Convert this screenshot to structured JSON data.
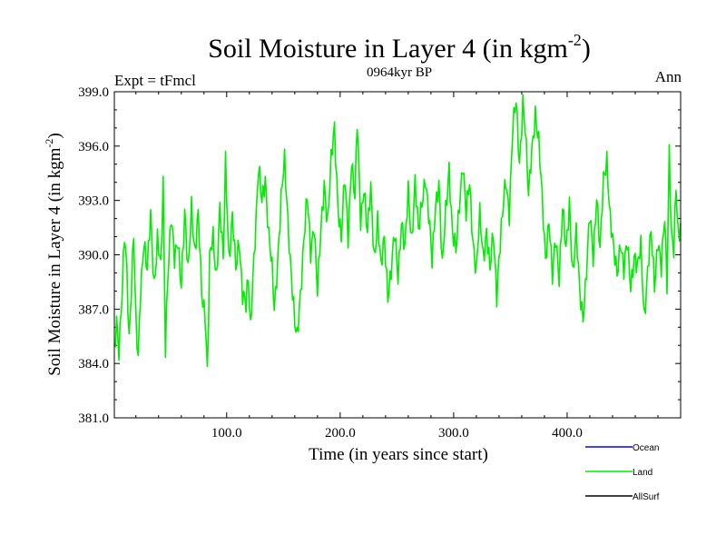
{
  "chart_data": {
    "type": "line",
    "title": "Soil Moisture in Layer 4 (in kgm",
    "title_sup": "-2",
    "title_close": ")",
    "subtitle": "0964kyr BP",
    "left_label": "Expt = tFmcl",
    "right_label": "Ann",
    "xlabel": "Time (in years since start)",
    "ylabel": "Soil Moisture in Layer 4 (in kgm",
    "ylabel_sup": "-2",
    "ylabel_close": ")",
    "xlim": [
      1,
      500
    ],
    "ylim": [
      381,
      399
    ],
    "xticks": [
      100,
      200,
      300,
      400
    ],
    "xtick_labels": [
      "100.0",
      "200.0",
      "300.0",
      "400.0"
    ],
    "yticks": [
      381,
      384,
      387,
      390,
      393,
      396,
      399
    ],
    "ytick_labels": [
      "381.0",
      "384.0",
      "387.0",
      "390.0",
      "393.0",
      "396.0",
      "399.0"
    ],
    "legend": [
      {
        "name": "Ocean",
        "color": "#0000ff"
      },
      {
        "name": "Land",
        "color": "#00ee00"
      },
      {
        "name": "AllSurf",
        "color": "#000000"
      }
    ],
    "series": [
      {
        "name": "Land",
        "color": "#00ee00",
        "knots": [
          [
            1,
            384.5
          ],
          [
            3,
            386.5
          ],
          [
            5,
            385
          ],
          [
            8,
            388
          ],
          [
            10,
            390.8
          ],
          [
            12,
            389
          ],
          [
            14,
            385.5
          ],
          [
            16,
            388.5
          ],
          [
            18,
            391.2
          ],
          [
            20,
            386
          ],
          [
            22,
            384
          ],
          [
            24,
            388
          ],
          [
            27,
            391
          ],
          [
            30,
            389
          ],
          [
            33,
            392
          ],
          [
            36,
            388.5
          ],
          [
            39,
            391
          ],
          [
            42,
            389
          ],
          [
            44,
            393.8
          ],
          [
            46,
            385
          ],
          [
            48,
            389
          ],
          [
            51,
            392
          ],
          [
            54,
            389.5
          ],
          [
            57,
            391
          ],
          [
            60,
            388.5
          ],
          [
            63,
            392
          ],
          [
            66,
            389
          ],
          [
            69,
            393
          ],
          [
            72,
            390
          ],
          [
            75,
            392
          ],
          [
            78,
            388
          ],
          [
            81,
            387
          ],
          [
            83,
            383.4
          ],
          [
            85,
            389.5
          ],
          [
            88,
            391
          ],
          [
            91,
            389
          ],
          [
            94,
            392.5
          ],
          [
            97,
            389.5
          ],
          [
            99,
            395.2
          ],
          [
            102,
            390
          ],
          [
            105,
            392
          ],
          [
            108,
            389
          ],
          [
            111,
            391
          ],
          [
            114,
            388
          ],
          [
            117,
            387
          ],
          [
            119,
            388.5
          ],
          [
            121,
            386
          ],
          [
            123,
            389
          ],
          [
            126,
            392
          ],
          [
            128,
            394.5
          ],
          [
            131,
            393
          ],
          [
            134,
            394.5
          ],
          [
            137,
            391
          ],
          [
            140,
            389
          ],
          [
            142,
            387
          ],
          [
            145,
            390
          ],
          [
            148,
            393
          ],
          [
            151,
            395
          ],
          [
            154,
            392
          ],
          [
            157,
            389
          ],
          [
            160,
            386
          ],
          [
            162,
            385.2
          ],
          [
            165,
            388
          ],
          [
            168,
            391
          ],
          [
            171,
            393
          ],
          [
            174,
            390
          ],
          [
            177,
            392
          ],
          [
            180,
            388
          ],
          [
            183,
            391
          ],
          [
            186,
            394
          ],
          [
            189,
            392
          ],
          [
            192,
            395
          ],
          [
            195,
            396.8
          ],
          [
            198,
            393
          ],
          [
            201,
            391
          ],
          [
            204,
            394
          ],
          [
            207,
            391
          ],
          [
            210,
            395.5
          ],
          [
            213,
            393
          ],
          [
            215,
            397.1
          ],
          [
            218,
            392
          ],
          [
            221,
            394
          ],
          [
            224,
            391
          ],
          [
            227,
            393.5
          ],
          [
            230,
            390
          ],
          [
            233,
            392
          ],
          [
            236,
            389
          ],
          [
            239,
            391
          ],
          [
            242,
            388
          ],
          [
            245,
            389
          ],
          [
            248,
            391
          ],
          [
            251,
            389
          ],
          [
            254,
            392
          ],
          [
            257,
            390
          ],
          [
            260,
            393.5
          ],
          [
            263,
            391
          ],
          [
            266,
            394
          ],
          [
            269,
            391
          ],
          [
            272,
            393
          ],
          [
            275,
            394.5
          ],
          [
            278,
            392
          ],
          [
            281,
            389.5
          ],
          [
            284,
            393
          ],
          [
            287,
            394
          ],
          [
            290,
            389
          ],
          [
            293,
            392.5
          ],
          [
            296,
            395
          ],
          [
            299,
            391
          ],
          [
            302,
            390
          ],
          [
            305,
            393
          ],
          [
            308,
            395.2
          ],
          [
            311,
            392
          ],
          [
            314,
            394
          ],
          [
            317,
            391
          ],
          [
            320,
            389
          ],
          [
            323,
            392
          ],
          [
            326,
            390
          ],
          [
            329,
            391.5
          ],
          [
            332,
            389
          ],
          [
            335,
            391
          ],
          [
            338,
            388
          ],
          [
            340,
            390
          ],
          [
            343,
            392
          ],
          [
            346,
            394
          ],
          [
            349,
            392.5
          ],
          [
            352,
            397
          ],
          [
            355,
            398.2
          ],
          [
            358,
            395
          ],
          [
            361,
            398.7
          ],
          [
            363,
            397
          ],
          [
            366,
            393
          ],
          [
            369,
            396
          ],
          [
            372,
            398
          ],
          [
            375,
            396
          ],
          [
            378,
            393
          ],
          [
            381,
            390
          ],
          [
            384,
            392
          ],
          [
            387,
            388.5
          ],
          [
            390,
            391
          ],
          [
            393,
            389
          ],
          [
            396,
            392.5
          ],
          [
            399,
            390
          ],
          [
            402,
            393
          ],
          [
            405,
            389
          ],
          [
            408,
            391
          ],
          [
            411,
            388
          ],
          [
            414,
            386.8
          ],
          [
            417,
            389
          ],
          [
            420,
            392
          ],
          [
            423,
            390
          ],
          [
            426,
            393.5
          ],
          [
            429,
            390
          ],
          [
            432,
            394
          ],
          [
            435,
            395.5
          ],
          [
            438,
            392
          ],
          [
            441,
            390
          ],
          [
            444,
            389
          ],
          [
            447,
            391
          ],
          [
            450,
            389
          ],
          [
            453,
            390.5
          ],
          [
            456,
            388.5
          ],
          [
            459,
            390
          ],
          [
            462,
            389
          ],
          [
            465,
            390.5
          ],
          [
            468,
            386.8
          ],
          [
            471,
            389
          ],
          [
            474,
            391
          ],
          [
            477,
            388.5
          ],
          [
            480,
            391
          ],
          [
            483,
            389
          ],
          [
            486,
            392
          ],
          [
            488,
            388.5
          ],
          [
            490,
            396
          ],
          [
            492,
            391
          ],
          [
            494,
            390
          ],
          [
            496,
            393.5
          ],
          [
            498,
            391
          ],
          [
            500,
            392
          ]
        ]
      }
    ]
  }
}
